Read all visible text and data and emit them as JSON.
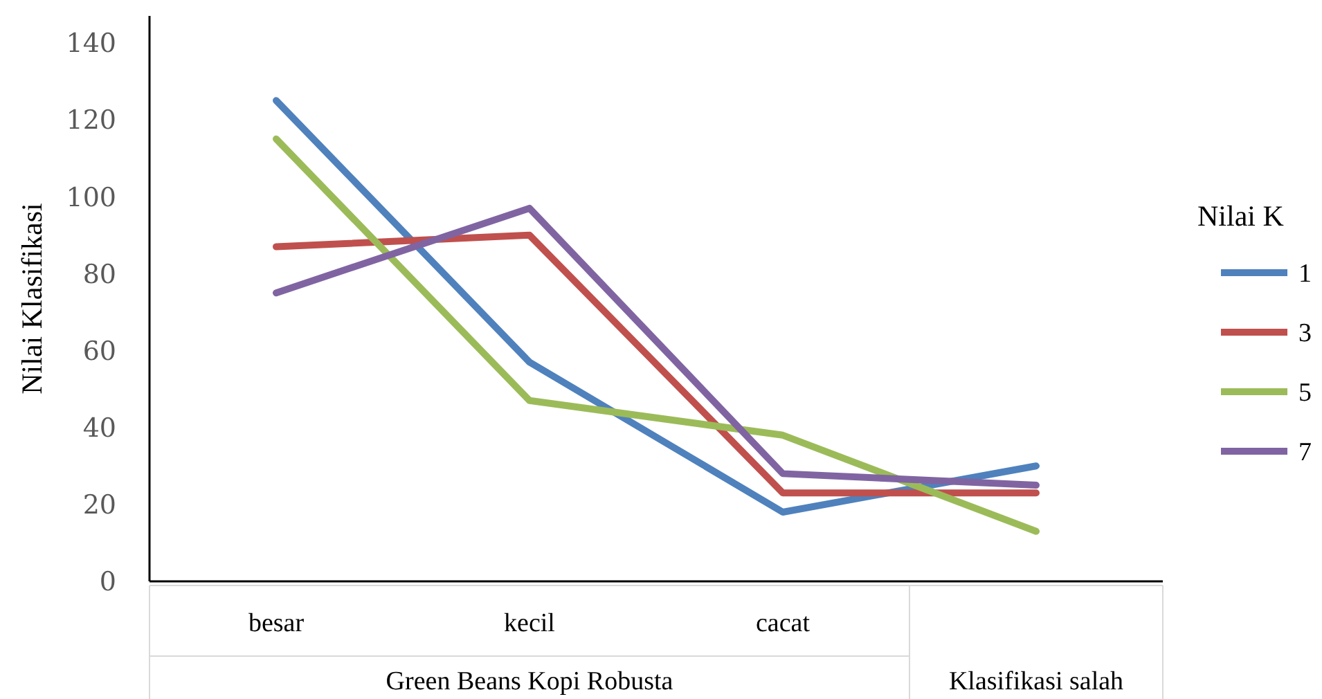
{
  "chart_data": {
    "type": "line",
    "ylabel": "Nilai Klasifikasi",
    "legend_title": "Nilai K",
    "legend": "right",
    "grid": false,
    "marker": "none",
    "line_style": "solid",
    "categories": [
      "besar",
      "kecil",
      "cacat",
      null
    ],
    "ylim": [
      0,
      147
    ],
    "yticks": [
      0,
      20,
      40,
      60,
      80,
      100,
      120,
      140
    ],
    "series": [
      {
        "name": "1",
        "color": "#4f81bd",
        "values": [
          125,
          57,
          18,
          30
        ]
      },
      {
        "name": "3",
        "color": "#c0504d",
        "values": [
          87,
          90,
          23,
          23
        ]
      },
      {
        "name": "5",
        "color": "#9bbb59",
        "values": [
          115,
          47,
          38,
          13
        ]
      },
      {
        "name": "7",
        "color": "#8064a2",
        "values": [
          75,
          97,
          28,
          25
        ]
      }
    ],
    "annotations": [
      "Green Beans Kopi Robusta",
      "Klasifikasi salah"
    ]
  }
}
